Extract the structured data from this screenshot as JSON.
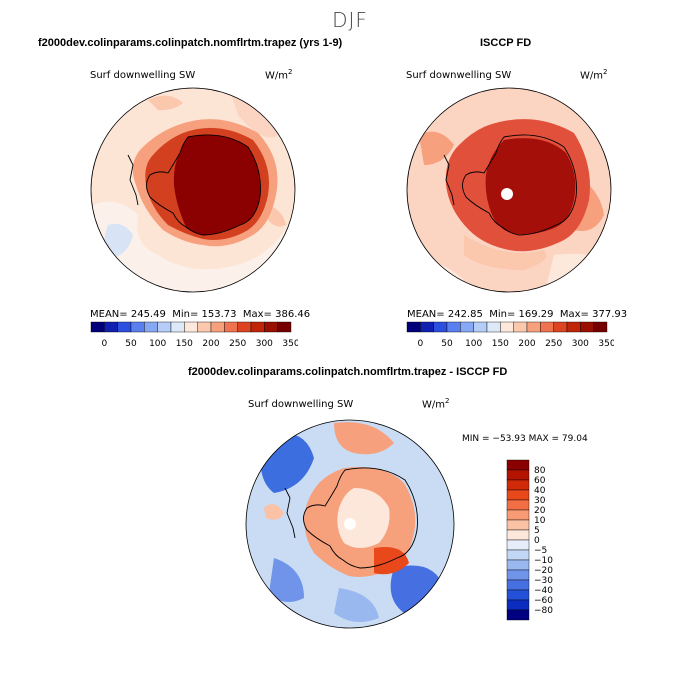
{
  "page_title": "DJF",
  "panels": [
    {
      "title": "f2000dev.colinparams.colinpatch.nomflrtm.trapez (yrs 1-9)",
      "variable": "Surf downwelling SW",
      "units": "W/m",
      "units_exp": "2",
      "stats": {
        "mean_label": "MEAN=",
        "mean": "245.49",
        "min_label": "Min=",
        "min": "153.73",
        "max_label": "Max=",
        "max": "386.46"
      },
      "colorbar": {
        "colors": [
          "#00007a",
          "#1020b0",
          "#2d4fe0",
          "#5a80f0",
          "#87a8f5",
          "#b5cdf7",
          "#dde8f8",
          "#fde8dc",
          "#fbc8ae",
          "#f7a07e",
          "#ef7350",
          "#dd4422",
          "#c02508",
          "#990f00",
          "#760000"
        ],
        "tick_labels": [
          "0",
          "50",
          "100",
          "150",
          "200",
          "250",
          "300",
          "350"
        ]
      },
      "map_summary": {
        "antarctica_fill": "#8b0000",
        "ring_fill": "#d24020",
        "ocean_fill": "#fde5d6"
      }
    },
    {
      "title": "ISCCP FD",
      "variable": "Surf downwelling SW",
      "units": "W/m",
      "units_exp": "2",
      "stats": {
        "mean_label": "MEAN=",
        "mean": "242.85",
        "min_label": "Min=",
        "min": "169.29",
        "max_label": "Max=",
        "max": "377.93"
      },
      "colorbar": {
        "colors": [
          "#00007a",
          "#1020b0",
          "#2d4fe0",
          "#5a80f0",
          "#87a8f5",
          "#b5cdf7",
          "#dde8f8",
          "#fde8dc",
          "#fbc8ae",
          "#f7a07e",
          "#ef7350",
          "#dd4422",
          "#c02508",
          "#990f00",
          "#760000"
        ],
        "tick_labels": [
          "0",
          "50",
          "100",
          "150",
          "200",
          "250",
          "300",
          "350"
        ]
      },
      "map_summary": {
        "antarctica_fill": "#a50f0a",
        "ring_fill": "#e0503a",
        "ocean_fill": "#fbd4c2"
      }
    }
  ],
  "difference": {
    "title": "f2000dev.colinparams.colinpatch.nomflrtm.trapez - ISCCP FD",
    "variable": "Surf downwelling SW",
    "units": "W/m",
    "units_exp": "2",
    "stats_text": "MIN = −53.93 MAX =  79.04",
    "colorbar": {
      "colors": [
        "#8b0000",
        "#b41300",
        "#d02a08",
        "#e8481a",
        "#f26e44",
        "#f89a74",
        "#fbc2a6",
        "#fde6da",
        "#e6ecf8",
        "#c2d6f5",
        "#9ab8f0",
        "#6f94ea",
        "#4670e2",
        "#2350d8",
        "#0c2cc0",
        "#000080"
      ],
      "labels": [
        "80",
        "60",
        "40",
        "30",
        "20",
        "10",
        "5",
        "0",
        "−5",
        "−10",
        "−20",
        "−30",
        "−40",
        "−60",
        "−80"
      ]
    },
    "map_summary": {
      "ocean_fill": "#c9dcf4",
      "antarctica_fill": "#f7a07c",
      "blue_patch_fill": "#3d6ee0"
    }
  }
}
